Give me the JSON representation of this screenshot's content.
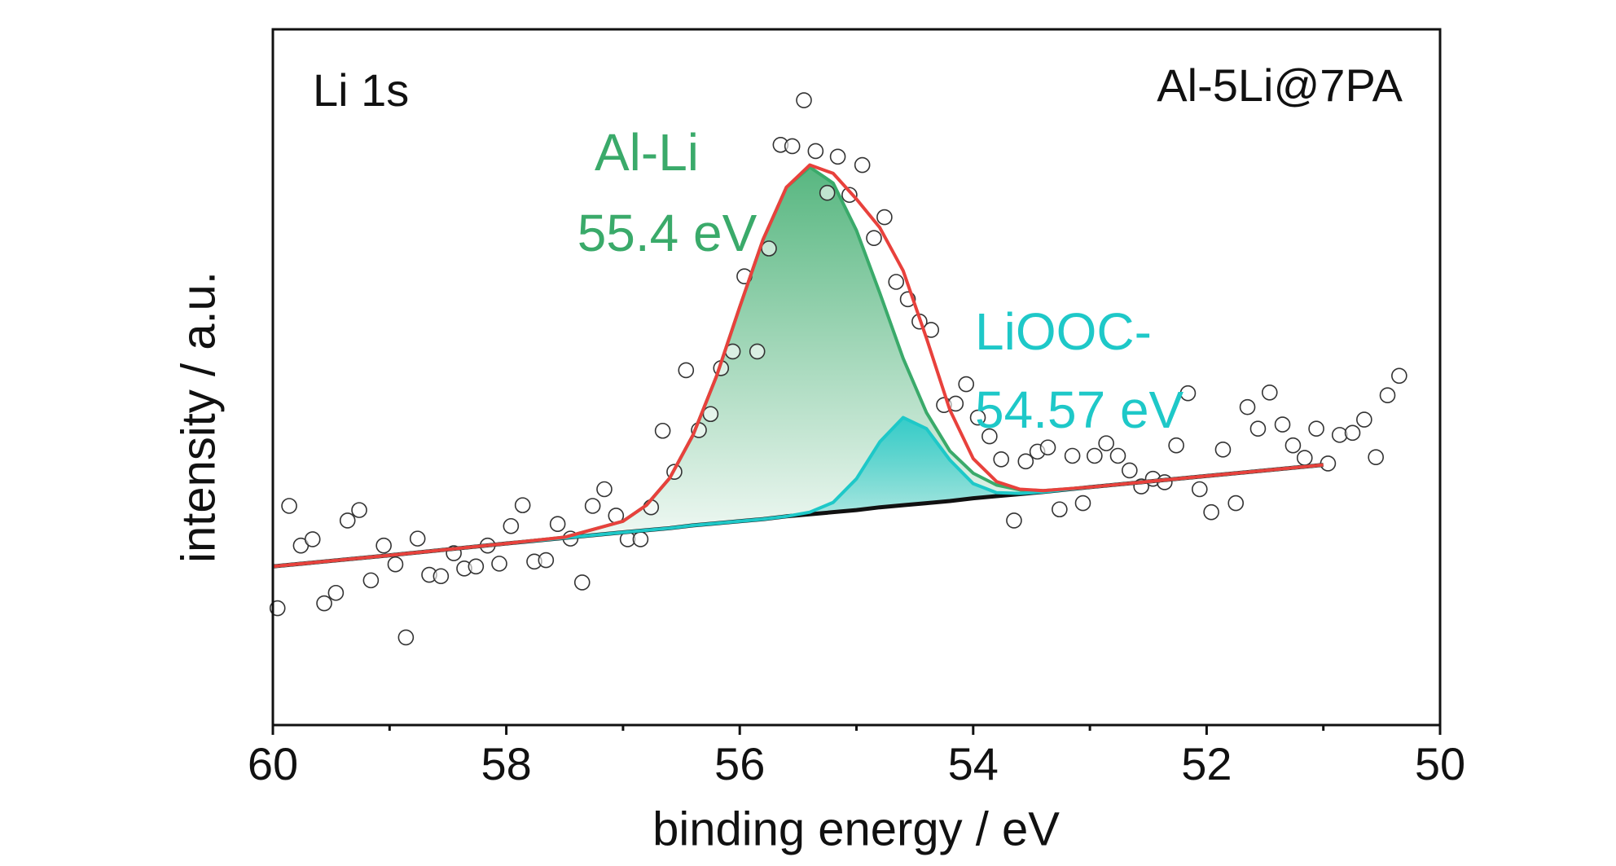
{
  "chart_data": {
    "type": "xps",
    "xlabel": "binding energy / eV",
    "ylabel": "intensity / a.u.",
    "xlim": [
      60,
      50
    ],
    "xticks": [
      60,
      58,
      56,
      54,
      52,
      50
    ],
    "xminorticks": [
      59,
      57,
      55,
      53,
      51
    ],
    "ylim": [
      0,
      100
    ],
    "annotations": [
      {
        "text": "Li 1s",
        "color": "#111111"
      },
      {
        "text": "Al-5Li@7PA",
        "color": "#111111"
      },
      {
        "text": "Al-Li",
        "color": "#3aaa6a"
      },
      {
        "text": "55.4 eV",
        "color": "#3aaa6a"
      },
      {
        "text": "LiOOC-",
        "color": "#1ec8c8"
      },
      {
        "text": "54.57 eV",
        "color": "#1ec8c8"
      }
    ],
    "scatter": {
      "x": [
        59.96,
        59.86,
        59.76,
        59.66,
        59.56,
        59.46,
        59.36,
        59.26,
        59.16,
        59.05,
        58.95,
        58.86,
        58.76,
        58.66,
        58.56,
        58.45,
        58.36,
        58.26,
        58.16,
        58.06,
        57.96,
        57.86,
        57.76,
        57.66,
        57.56,
        57.45,
        57.35,
        57.26,
        57.16,
        57.06,
        56.96,
        56.85,
        56.76,
        56.66,
        56.56,
        56.46,
        56.35,
        56.25,
        56.16,
        56.06,
        55.96,
        55.85,
        55.75,
        55.65,
        55.55,
        55.45,
        55.35,
        55.25,
        55.16,
        55.06,
        54.95,
        54.85,
        54.76,
        54.66,
        54.56,
        54.46,
        54.36,
        54.25,
        54.15,
        54.06,
        53.96,
        53.86,
        53.76,
        53.65,
        53.55,
        53.45,
        53.36,
        53.26,
        53.15,
        53.06,
        52.96,
        52.86,
        52.76,
        52.66,
        52.56,
        52.46,
        52.36,
        52.26,
        52.16,
        52.06,
        51.96,
        51.86,
        51.75,
        51.65,
        51.56,
        51.46,
        51.35,
        51.26,
        51.16,
        51.06,
        50.96,
        50.86,
        50.75,
        50.65,
        50.55,
        50.45,
        50.35
      ],
      "values": [
        16.8,
        31.5,
        25.8,
        26.7,
        17.5,
        19.0,
        29.4,
        30.9,
        20.8,
        25.8,
        23.1,
        12.6,
        26.8,
        21.6,
        21.4,
        24.7,
        22.5,
        22.8,
        25.8,
        23.2,
        28.6,
        31.6,
        23.5,
        23.7,
        28.9,
        26.8,
        20.5,
        31.5,
        33.9,
        30.1,
        26.7,
        26.7,
        31.3,
        42.3,
        36.4,
        51.0,
        42.4,
        44.7,
        51.3,
        53.7,
        64.5,
        53.7,
        68.5,
        83.4,
        83.2,
        89.8,
        82.5,
        76.5,
        81.7,
        76.2,
        80.5,
        70.0,
        73.0,
        63.7,
        61.2,
        58.0,
        56.8,
        46.0,
        46.2,
        49.0,
        44.2,
        41.5,
        38.2,
        29.4,
        37.9,
        39.3,
        39.9,
        31.0,
        38.7,
        31.9,
        38.7,
        40.5,
        38.7,
        36.6,
        34.3,
        35.4,
        34.9,
        40.2,
        47.7,
        33.9,
        30.6,
        39.6,
        31.9,
        45.7,
        42.6,
        47.8,
        43.2,
        40.2,
        38.4,
        42.6,
        37.6,
        41.7,
        42.0,
        43.9,
        38.5,
        47.4,
        50.2
      ]
    },
    "x": [
      60,
      59,
      58,
      57.5,
      57,
      56.8,
      56.6,
      56.4,
      56.2,
      56.0,
      55.8,
      55.6,
      55.4,
      55.2,
      55.0,
      54.8,
      54.6,
      54.4,
      54.2,
      54.0,
      53.8,
      53.6,
      53.4,
      53.0,
      52,
      51
    ],
    "series": [
      {
        "color": "#111111",
        "values": [
          22.8,
          24.4,
          26.1,
          26.9,
          27.7,
          28.0,
          28.3,
          28.7,
          29.0,
          29.3,
          29.6,
          30.0,
          30.3,
          30.6,
          30.9,
          31.3,
          31.6,
          31.9,
          32.2,
          32.6,
          32.9,
          33.2,
          33.5,
          34.2,
          35.8,
          37.4
        ]
      },
      {
        "color": "#3aaa6a",
        "fill": true,
        "values": [
          22.8,
          24.4,
          26.1,
          27.0,
          29.3,
          31.6,
          35.5,
          41.7,
          50.1,
          60.1,
          69.8,
          77.3,
          80.2,
          77.9,
          71.1,
          62.1,
          52.7,
          44.9,
          39.4,
          36.2,
          34.5,
          33.8,
          33.7,
          34.2,
          35.8,
          37.4
        ]
      },
      {
        "color": "#1ec8c8",
        "fill": true,
        "values": [
          22.8,
          24.4,
          26.1,
          26.9,
          27.7,
          28.0,
          28.3,
          28.7,
          29.0,
          29.3,
          29.6,
          30.0,
          30.6,
          32.0,
          35.4,
          40.7,
          44.2,
          42.6,
          38.1,
          34.7,
          33.4,
          33.3,
          33.5,
          34.2,
          35.8,
          37.4
        ]
      },
      {
        "color": "#e8413c",
        "values": [
          22.8,
          24.4,
          26.1,
          27.0,
          29.3,
          31.6,
          35.5,
          41.7,
          50.1,
          60.1,
          69.8,
          77.3,
          80.5,
          79.3,
          75.6,
          71.5,
          65.3,
          55.6,
          45.3,
          38.3,
          35.0,
          33.9,
          33.7,
          34.2,
          35.8,
          37.4
        ]
      }
    ]
  }
}
